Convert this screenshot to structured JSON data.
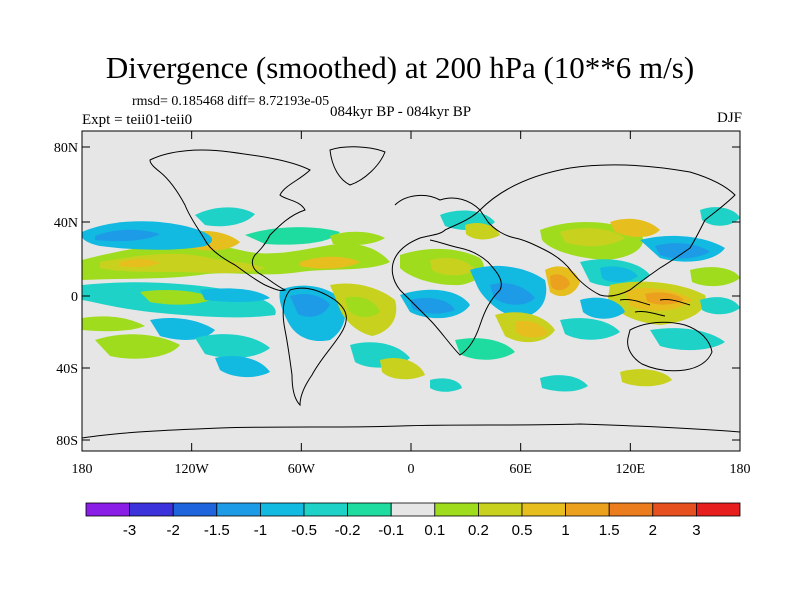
{
  "header": {
    "title": "Divergence (smoothed) at 200 hPa (10**6 m/s)",
    "stats": "rmsd= 0.185468 diff= 8.72193e-05",
    "experiment": "Expt = teii01-teii0",
    "period": "084kyr BP - 084kyr BP",
    "season": "DJF"
  },
  "map": {
    "lat_ticks": [
      "80N",
      "40N",
      "0",
      "40S",
      "80S"
    ],
    "lon_ticks": [
      "180",
      "120W",
      "60W",
      "0",
      "60E",
      "120E",
      "180"
    ],
    "background_color": "#e6e6e6"
  },
  "colorbar": {
    "labels": [
      "-3",
      "-2",
      "-1.5",
      "-1",
      "-0.5",
      "-0.2",
      "-0.1",
      "0.1",
      "0.2",
      "0.5",
      "1",
      "1.5",
      "2",
      "3"
    ],
    "colors": [
      "#8b1ee6",
      "#3c32dc",
      "#1e64dc",
      "#1e9be6",
      "#12b9e1",
      "#1ed2c8",
      "#1edca0",
      "#e6e6e6",
      "#a0dc1e",
      "#c8d21e",
      "#e6be1e",
      "#eba01e",
      "#eb7d1e",
      "#e6501e",
      "#e61e1e"
    ]
  }
}
